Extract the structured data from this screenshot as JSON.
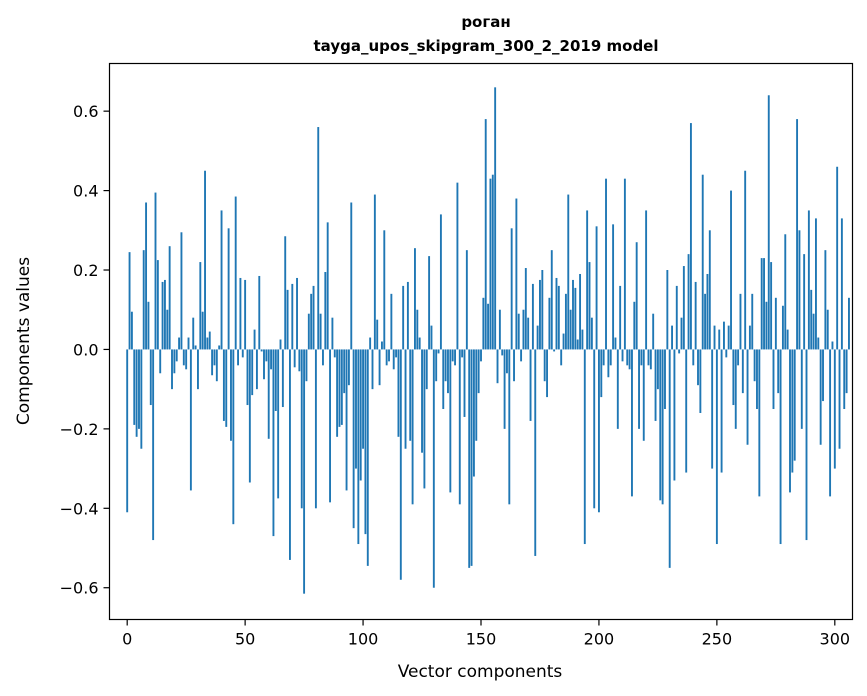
{
  "chart_data": {
    "type": "bar",
    "title": "роган",
    "subtitle": "tayga_upos_skipgram_300_2_2019 model",
    "xlabel": "Vector components",
    "ylabel": "Components values",
    "xlim": [
      -7.5,
      307.5
    ],
    "ylim": [
      -0.68,
      0.72
    ],
    "xticks": [
      0,
      50,
      100,
      150,
      200,
      250,
      300
    ],
    "yticks": [
      -0.6,
      -0.4,
      -0.2,
      0.0,
      0.2,
      0.4,
      0.6
    ],
    "ytick_labels": [
      "−0.6",
      "−0.4",
      "−0.2",
      "0.0",
      "0.2",
      "0.4",
      "0.6"
    ],
    "grid": false,
    "bar_color": "#1f77b4",
    "values": [
      -0.41,
      0.245,
      0.095,
      -0.19,
      -0.22,
      -0.2,
      -0.25,
      0.25,
      0.37,
      0.12,
      -0.14,
      -0.48,
      0.395,
      0.225,
      -0.06,
      0.17,
      0.175,
      0.1,
      0.26,
      -0.1,
      -0.06,
      -0.03,
      0.03,
      0.295,
      -0.04,
      -0.05,
      0.03,
      -0.355,
      0.08,
      0.01,
      -0.1,
      0.22,
      0.095,
      0.45,
      0.03,
      0.045,
      -0.065,
      -0.04,
      -0.08,
      0.01,
      0.35,
      -0.18,
      -0.195,
      0.305,
      -0.23,
      -0.44,
      0.385,
      -0.04,
      0.18,
      -0.02,
      0.175,
      -0.14,
      -0.335,
      -0.115,
      0.05,
      -0.1,
      0.185,
      -0.005,
      -0.075,
      -0.03,
      -0.225,
      -0.05,
      -0.47,
      -0.155,
      -0.375,
      0.025,
      -0.145,
      0.285,
      0.15,
      -0.53,
      0.165,
      -0.045,
      0.18,
      -0.055,
      -0.4,
      -0.615,
      -0.08,
      0.09,
      0.14,
      0.16,
      -0.4,
      0.56,
      0.09,
      -0.04,
      0.195,
      0.32,
      -0.385,
      0.08,
      -0.02,
      -0.22,
      -0.195,
      -0.19,
      -0.11,
      -0.355,
      -0.09,
      0.37,
      -0.45,
      -0.3,
      -0.49,
      -0.33,
      -0.25,
      -0.465,
      -0.545,
      0.03,
      -0.1,
      0.39,
      0.075,
      -0.09,
      0.02,
      0.3,
      -0.04,
      -0.03,
      0.14,
      -0.05,
      -0.02,
      -0.22,
      -0.58,
      0.16,
      -0.25,
      0.17,
      -0.23,
      -0.39,
      0.255,
      0.1,
      0.03,
      -0.26,
      -0.35,
      -0.1,
      0.235,
      0.06,
      -0.6,
      -0.08,
      -0.01,
      0.34,
      -0.15,
      -0.08,
      -0.11,
      -0.36,
      -0.03,
      -0.04,
      0.42,
      -0.39,
      -0.02,
      -0.17,
      0.25,
      -0.55,
      -0.545,
      -0.32,
      -0.23,
      -0.11,
      -0.03,
      0.13,
      0.58,
      0.115,
      0.43,
      0.44,
      0.66,
      -0.085,
      0.1,
      -0.015,
      -0.2,
      -0.06,
      -0.39,
      0.305,
      -0.08,
      0.38,
      0.09,
      -0.03,
      0.1,
      0.205,
      0.08,
      -0.18,
      0.165,
      -0.52,
      0.06,
      0.175,
      0.2,
      -0.08,
      -0.12,
      0.13,
      0.25,
      -0.005,
      0.18,
      0.16,
      -0.04,
      0.04,
      0.14,
      0.39,
      0.1,
      0.175,
      0.155,
      0.025,
      0.19,
      0.05,
      -0.49,
      0.35,
      0.22,
      0.08,
      -0.4,
      0.31,
      -0.41,
      -0.12,
      -0.04,
      0.43,
      -0.07,
      -0.04,
      0.315,
      0.03,
      -0.2,
      0.16,
      -0.03,
      0.43,
      -0.04,
      -0.05,
      -0.37,
      0.12,
      0.27,
      -0.2,
      -0.04,
      -0.23,
      0.35,
      -0.04,
      -0.05,
      0.09,
      -0.18,
      -0.1,
      -0.38,
      -0.39,
      -0.15,
      0.2,
      -0.55,
      0.06,
      -0.33,
      0.16,
      -0.01,
      0.08,
      0.21,
      -0.31,
      0.24,
      0.57,
      -0.04,
      0.17,
      -0.09,
      -0.16,
      0.44,
      0.14,
      0.19,
      0.3,
      -0.3,
      0.06,
      -0.49,
      0.05,
      -0.31,
      0.07,
      -0.02,
      0.06,
      0.4,
      -0.14,
      -0.2,
      -0.04,
      0.14,
      -0.11,
      0.45,
      -0.24,
      0.06,
      0.14,
      -0.08,
      -0.15,
      -0.37,
      0.23,
      0.23,
      0.12,
      0.64,
      0.22,
      -0.15,
      0.13,
      -0.11,
      -0.49,
      0.11,
      0.29,
      0.05,
      -0.36,
      -0.31,
      -0.28,
      0.58,
      0.3,
      -0.2,
      0.24,
      -0.48,
      0.35,
      0.15,
      0.09,
      0.33,
      0.03,
      -0.24,
      -0.13,
      0.25,
      0.1,
      -0.37,
      0.02,
      -0.3,
      0.46,
      -0.25,
      0.33,
      -0.15,
      -0.11,
      0.13
    ]
  }
}
